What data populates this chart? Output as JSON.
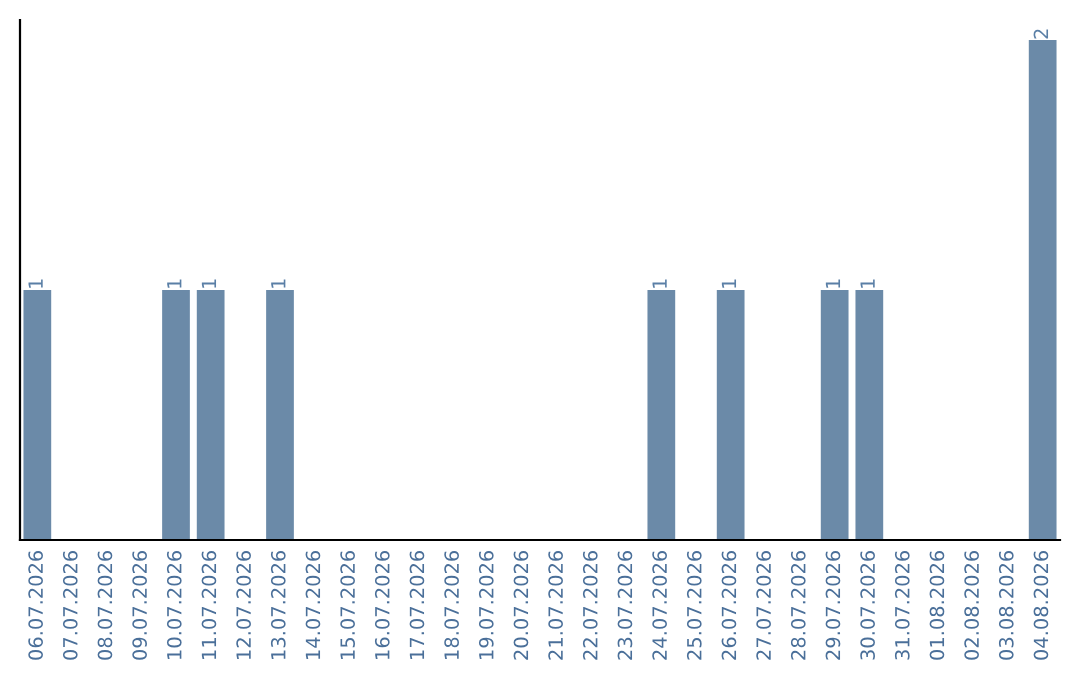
{
  "chart_data": {
    "type": "bar",
    "categories": [
      "06.07.2026",
      "07.07.2026",
      "08.07.2026",
      "09.07.2026",
      "10.07.2026",
      "11.07.2026",
      "12.07.2026",
      "13.07.2026",
      "14.07.2026",
      "15.07.2026",
      "16.07.2026",
      "17.07.2026",
      "18.07.2026",
      "19.07.2026",
      "20.07.2026",
      "21.07.2026",
      "22.07.2026",
      "23.07.2026",
      "24.07.2026",
      "25.07.2026",
      "26.07.2026",
      "27.07.2026",
      "28.07.2026",
      "29.07.2026",
      "30.07.2026",
      "31.07.2026",
      "01.08.2026",
      "02.08.2026",
      "03.08.2026",
      "04.08.2026"
    ],
    "values": [
      1,
      0,
      0,
      0,
      1,
      1,
      0,
      1,
      0,
      0,
      0,
      0,
      0,
      0,
      0,
      0,
      0,
      0,
      1,
      0,
      1,
      0,
      0,
      1,
      1,
      0,
      0,
      0,
      0,
      2
    ],
    "value_labels": [
      "1",
      null,
      null,
      null,
      "1",
      "1",
      null,
      "1",
      null,
      null,
      null,
      null,
      null,
      null,
      null,
      null,
      null,
      null,
      "1",
      null,
      "1",
      null,
      null,
      "1",
      "1",
      null,
      null,
      null,
      null,
      "2"
    ],
    "color": "#6b8aa8",
    "tick_labels": "x",
    "grid": false,
    "legend": false
  }
}
